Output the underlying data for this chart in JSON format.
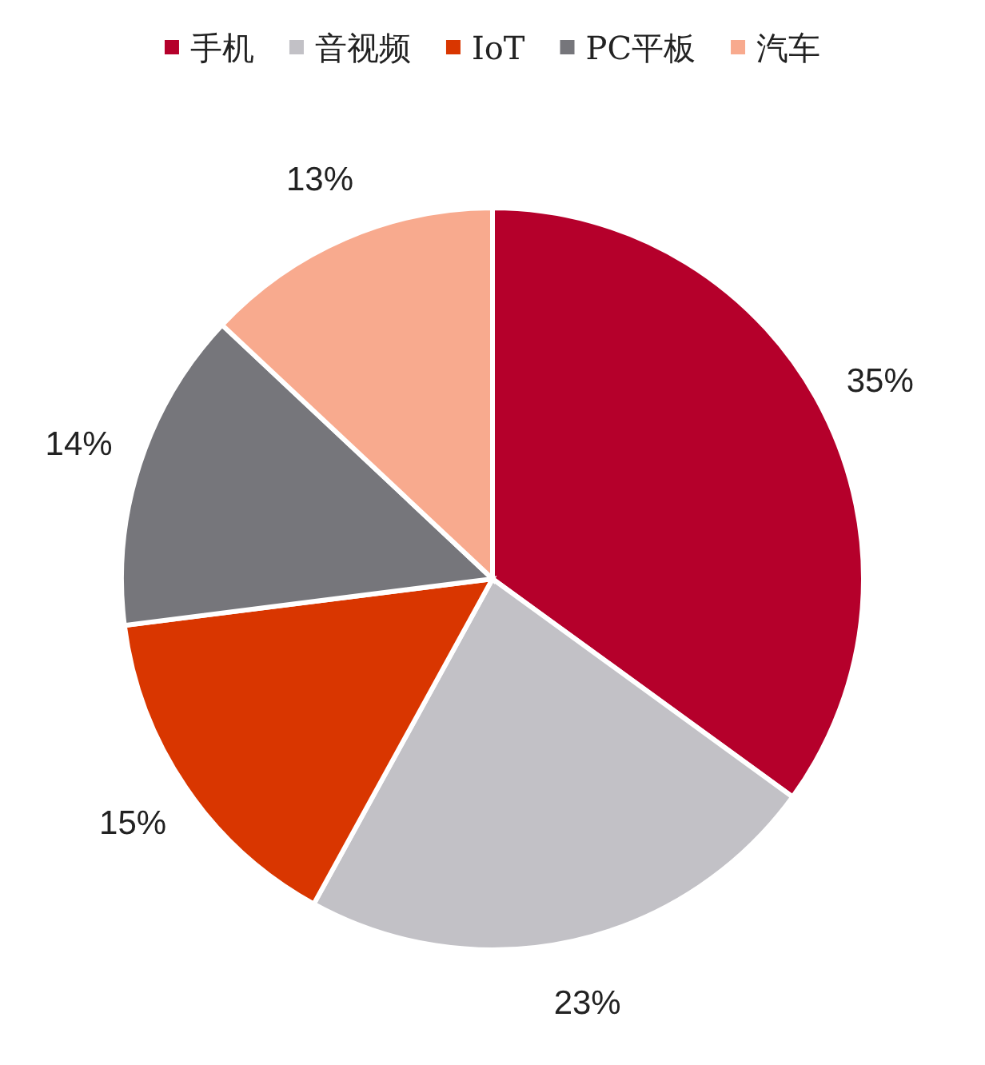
{
  "chart_data": {
    "type": "pie",
    "categories": [
      "手机",
      "音视频",
      "IoT",
      "PC平板",
      "汽车"
    ],
    "values": [
      35,
      23,
      15,
      14,
      13
    ],
    "colors": [
      "#b5002b",
      "#c2c1c6",
      "#d93600",
      "#76767b",
      "#f8aa8e"
    ],
    "value_labels": [
      "35%",
      "23%",
      "15%",
      "14%",
      "13%"
    ],
    "legend": "top"
  }
}
